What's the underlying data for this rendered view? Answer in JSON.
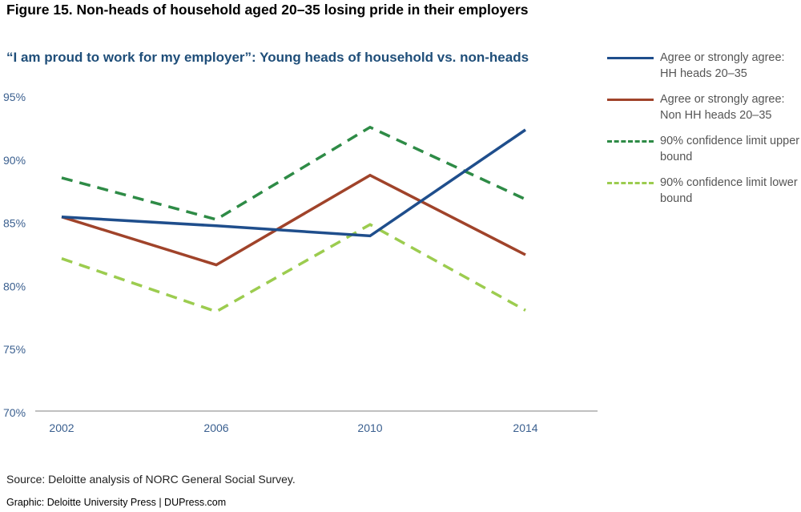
{
  "figure_title": "Figure 15. Non-heads of household aged 20–35 losing pride in their employers",
  "source": "Source: Deloitte analysis of NORC General Social Survey.",
  "credit": "Graphic: Deloitte University Press  |  DUPress.com",
  "chart_data": {
    "type": "line",
    "title": "“I am proud to work for my employer”: Young heads of household vs. non-heads",
    "xlabel": "",
    "ylabel": "",
    "x": [
      "2002",
      "2006",
      "2010",
      "2014"
    ],
    "ylim": [
      70,
      95
    ],
    "yticks": [
      "70%",
      "75%",
      "80%",
      "85%",
      "90%",
      "95%"
    ],
    "ytick_values": [
      70,
      75,
      80,
      85,
      90,
      95
    ],
    "grid": false,
    "legend_position": "right",
    "series": [
      {
        "name": "Agree or strongly agree: HH heads 20–35",
        "values": [
          85.5,
          84.8,
          84.0,
          92.4
        ],
        "color": "#1f4e8c",
        "style": "solid"
      },
      {
        "name": "Agree or strongly agree: Non HH heads 20–35",
        "values": [
          85.5,
          81.7,
          88.8,
          82.5
        ],
        "color": "#a0432a",
        "style": "solid"
      },
      {
        "name": "90% confidence limit upper bound",
        "values": [
          88.6,
          85.3,
          92.6,
          86.9
        ],
        "color": "#2e8b46",
        "style": "dashed"
      },
      {
        "name": "90% confidence limit lower bound",
        "values": [
          82.2,
          78.0,
          84.9,
          78.1
        ],
        "color": "#9ccc4f",
        "style": "dashed"
      }
    ]
  }
}
